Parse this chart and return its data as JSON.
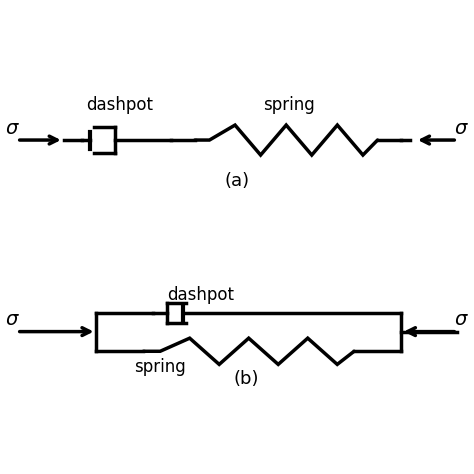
{
  "bg_color": "#ffffff",
  "line_color": "#000000",
  "line_width": 2.5,
  "label_a": "(a)",
  "label_b": "(b)",
  "sigma": "σ",
  "dashpot_label": "dashpot",
  "spring_label": "spring",
  "fig_width": 4.74,
  "fig_height": 4.74,
  "dpi": 100
}
